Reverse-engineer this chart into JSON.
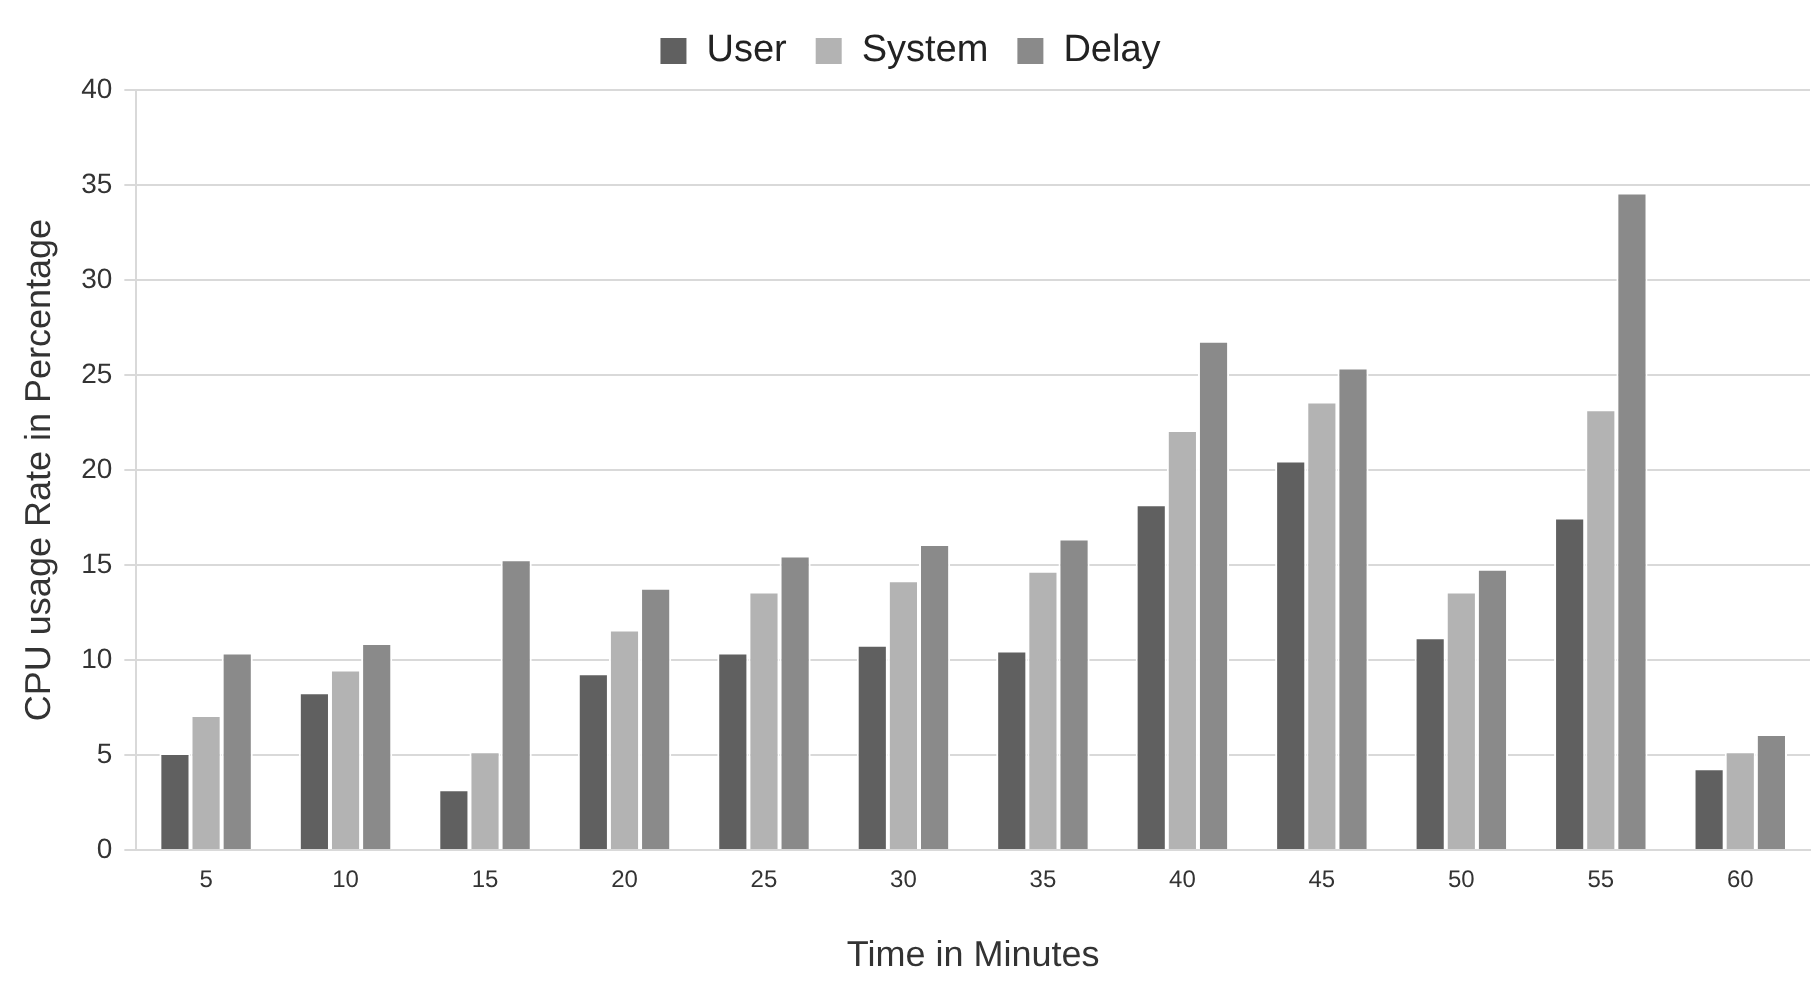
{
  "chart_data": {
    "type": "bar",
    "xlabel": "Time in Minutes",
    "ylabel": "CPU usage Rate in Percentage",
    "categories": [
      "5",
      "10",
      "15",
      "20",
      "25",
      "30",
      "35",
      "40",
      "45",
      "50",
      "55",
      "60"
    ],
    "series": [
      {
        "name": "User",
        "color": "#606060",
        "values": [
          5.1,
          8.3,
          3.2,
          9.3,
          10.4,
          10.8,
          10.5,
          18.2,
          20.5,
          11.2,
          17.5,
          4.3
        ]
      },
      {
        "name": "System",
        "color": "#b3b3b3",
        "values": [
          7.1,
          9.5,
          5.2,
          11.6,
          13.6,
          14.2,
          14.7,
          22.1,
          23.6,
          13.6,
          23.2,
          5.2
        ]
      },
      {
        "name": "Delay",
        "color": "#8a8a8a",
        "values": [
          10.4,
          10.9,
          15.3,
          13.8,
          15.5,
          16.1,
          16.4,
          26.8,
          25.4,
          14.8,
          34.6,
          6.1
        ]
      }
    ],
    "ylim": [
      0,
      40
    ],
    "yticks": [
      0,
      5,
      10,
      15,
      20,
      25,
      30,
      35,
      40
    ],
    "grid": "y",
    "legend": "top"
  }
}
